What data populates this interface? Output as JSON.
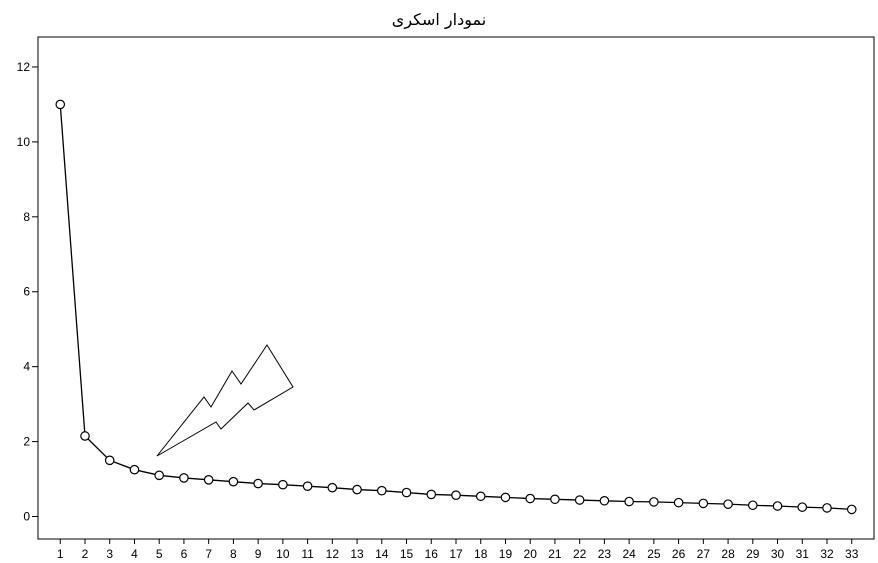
{
  "chart_data": {
    "type": "line",
    "title": "نمودار اسکری",
    "xlabel": "",
    "ylabel": "",
    "x": [
      1,
      2,
      3,
      4,
      5,
      6,
      7,
      8,
      9,
      10,
      11,
      12,
      13,
      14,
      15,
      16,
      17,
      18,
      19,
      20,
      21,
      22,
      23,
      24,
      25,
      26,
      27,
      28,
      29,
      30,
      31,
      32,
      33
    ],
    "series": [
      {
        "values": [
          11.0,
          2.15,
          1.5,
          1.25,
          1.1,
          1.03,
          0.98,
          0.93,
          0.88,
          0.85,
          0.81,
          0.77,
          0.72,
          0.69,
          0.64,
          0.59,
          0.57,
          0.54,
          0.51,
          0.48,
          0.46,
          0.44,
          0.42,
          0.4,
          0.39,
          0.37,
          0.35,
          0.33,
          0.3,
          0.28,
          0.25,
          0.23,
          0.19
        ]
      }
    ],
    "ylim": [
      -0.6,
      12.8
    ],
    "yticks": [
      0,
      2,
      4,
      6,
      8,
      10,
      12
    ],
    "xlim": [
      0.1,
      33.9
    ],
    "grid": false,
    "legend": "none",
    "line_color": "#000000",
    "marker": "open-circle"
  }
}
